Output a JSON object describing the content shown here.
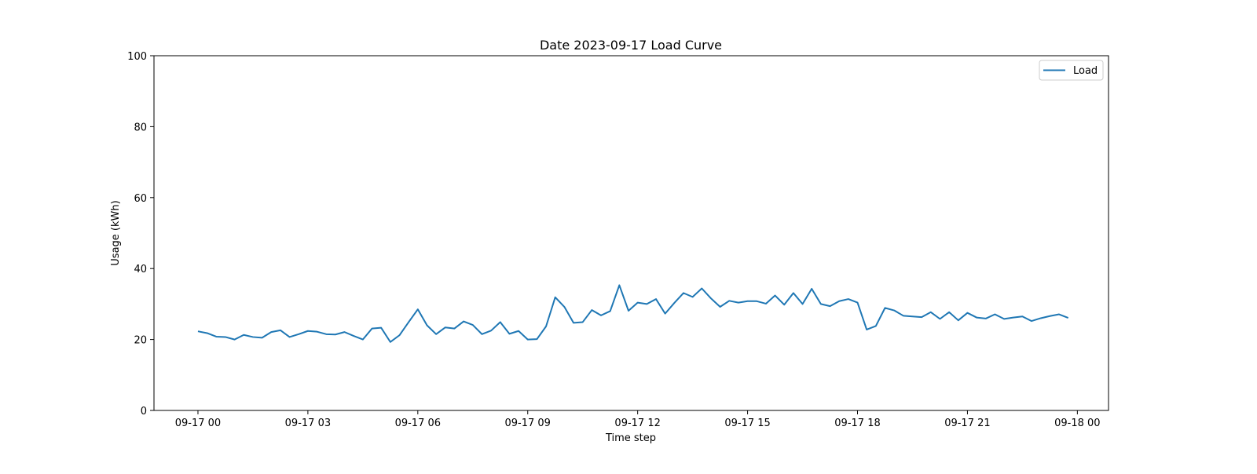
{
  "chart_data": {
    "type": "line",
    "title": "Date 2023-09-17 Load Curve",
    "xlabel": "Time step",
    "ylabel": "Usage (kWh)",
    "ylim": [
      0,
      100
    ],
    "xlim": [
      "2023-09-16 22:48",
      "2023-09-18 00:51"
    ],
    "xticks": [
      {
        "value": "2023-09-17 00:00",
        "label": "09-17 00"
      },
      {
        "value": "2023-09-17 03:00",
        "label": "09-17 03"
      },
      {
        "value": "2023-09-17 06:00",
        "label": "09-17 06"
      },
      {
        "value": "2023-09-17 09:00",
        "label": "09-17 09"
      },
      {
        "value": "2023-09-17 12:00",
        "label": "09-17 12"
      },
      {
        "value": "2023-09-17 15:00",
        "label": "09-17 15"
      },
      {
        "value": "2023-09-17 18:00",
        "label": "09-17 18"
      },
      {
        "value": "2023-09-17 21:00",
        "label": "09-17 21"
      },
      {
        "value": "2023-09-18 00:00",
        "label": "09-18 00"
      }
    ],
    "yticks": [
      0,
      20,
      40,
      60,
      80,
      100
    ],
    "grid": false,
    "legend_position": "top-right",
    "series": [
      {
        "name": "Load",
        "color": "#1f77b4",
        "x": [
          "2023-09-17 00:00",
          "2023-09-17 00:15",
          "2023-09-17 00:30",
          "2023-09-17 00:45",
          "2023-09-17 01:00",
          "2023-09-17 01:15",
          "2023-09-17 01:30",
          "2023-09-17 01:45",
          "2023-09-17 02:00",
          "2023-09-17 02:15",
          "2023-09-17 02:30",
          "2023-09-17 02:45",
          "2023-09-17 03:00",
          "2023-09-17 03:15",
          "2023-09-17 03:30",
          "2023-09-17 03:45",
          "2023-09-17 04:00",
          "2023-09-17 04:15",
          "2023-09-17 04:30",
          "2023-09-17 04:45",
          "2023-09-17 05:00",
          "2023-09-17 05:15",
          "2023-09-17 05:30",
          "2023-09-17 05:45",
          "2023-09-17 06:00",
          "2023-09-17 06:15",
          "2023-09-17 06:30",
          "2023-09-17 06:45",
          "2023-09-17 07:00",
          "2023-09-17 07:15",
          "2023-09-17 07:30",
          "2023-09-17 07:45",
          "2023-09-17 08:00",
          "2023-09-17 08:15",
          "2023-09-17 08:30",
          "2023-09-17 08:45",
          "2023-09-17 09:00",
          "2023-09-17 09:15",
          "2023-09-17 09:30",
          "2023-09-17 09:45",
          "2023-09-17 10:00",
          "2023-09-17 10:15",
          "2023-09-17 10:30",
          "2023-09-17 10:45",
          "2023-09-17 11:00",
          "2023-09-17 11:15",
          "2023-09-17 11:30",
          "2023-09-17 11:45",
          "2023-09-17 12:00",
          "2023-09-17 12:15",
          "2023-09-17 12:30",
          "2023-09-17 12:45",
          "2023-09-17 13:00",
          "2023-09-17 13:15",
          "2023-09-17 13:30",
          "2023-09-17 13:45",
          "2023-09-17 14:00",
          "2023-09-17 14:15",
          "2023-09-17 14:30",
          "2023-09-17 14:45",
          "2023-09-17 15:00",
          "2023-09-17 15:15",
          "2023-09-17 15:30",
          "2023-09-17 15:45",
          "2023-09-17 16:00",
          "2023-09-17 16:15",
          "2023-09-17 16:30",
          "2023-09-17 16:45",
          "2023-09-17 17:00",
          "2023-09-17 17:15",
          "2023-09-17 17:30",
          "2023-09-17 17:45",
          "2023-09-17 18:00",
          "2023-09-17 18:15",
          "2023-09-17 18:30",
          "2023-09-17 18:45",
          "2023-09-17 19:00",
          "2023-09-17 19:15",
          "2023-09-17 19:30",
          "2023-09-17 19:45",
          "2023-09-17 20:00",
          "2023-09-17 20:15",
          "2023-09-17 20:30",
          "2023-09-17 20:45",
          "2023-09-17 21:00",
          "2023-09-17 21:15",
          "2023-09-17 21:30",
          "2023-09-17 21:45",
          "2023-09-17 22:00",
          "2023-09-17 22:15",
          "2023-09-17 22:30",
          "2023-09-17 22:45",
          "2023-09-17 23:00",
          "2023-09-17 23:15",
          "2023-09-17 23:30",
          "2023-09-17 23:45"
        ],
        "y": [
          22.3,
          21.8,
          20.8,
          20.7,
          20.0,
          21.3,
          20.7,
          20.5,
          22.1,
          22.6,
          20.7,
          21.5,
          22.4,
          22.2,
          21.5,
          21.4,
          22.1,
          21.0,
          20.0,
          23.1,
          23.3,
          19.3,
          21.2,
          24.9,
          28.5,
          24.0,
          21.5,
          23.4,
          23.1,
          25.1,
          24.1,
          21.5,
          22.5,
          24.9,
          21.6,
          22.4,
          20.0,
          20.1,
          23.7,
          31.9,
          29.2,
          24.7,
          24.9,
          28.3,
          26.8,
          28.0,
          35.3,
          28.1,
          30.4,
          30.0,
          31.4,
          27.3,
          30.3,
          33.1,
          32.0,
          34.4,
          31.6,
          29.2,
          30.9,
          30.4,
          30.8,
          30.8,
          30.1,
          32.4,
          29.8,
          33.1,
          30.0,
          34.3,
          30.0,
          29.4,
          30.8,
          31.4,
          30.4,
          22.8,
          23.8,
          28.9,
          28.2,
          26.7,
          26.5,
          26.3,
          27.7,
          25.8,
          27.7,
          25.4,
          27.5,
          26.2,
          25.9,
          27.1,
          25.8,
          26.2,
          26.5,
          25.2,
          26.0,
          26.6,
          27.1,
          26.1
        ]
      }
    ]
  }
}
